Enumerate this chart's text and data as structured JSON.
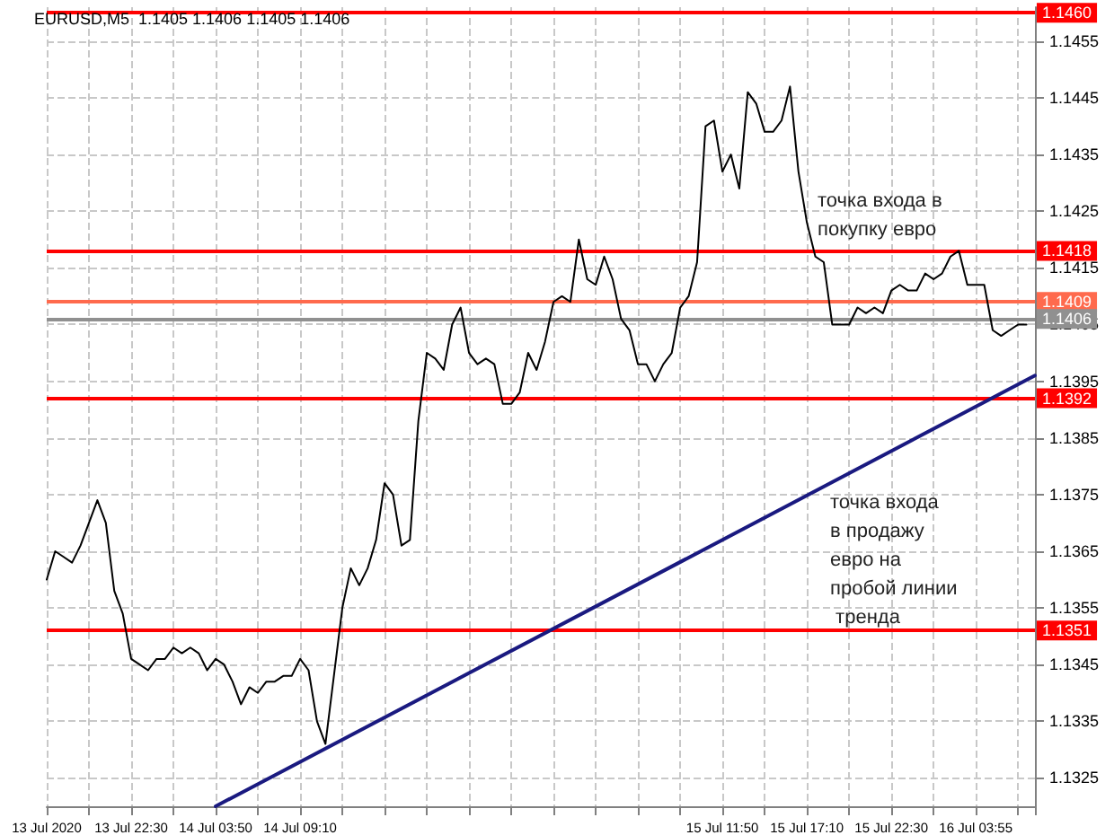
{
  "chart_data": {
    "type": "line",
    "title": "EURUSD,M5  1.1405 1.1406 1.1405 1.1406",
    "annotations": [
      "точка входа в покупку евро",
      "точка входа в продажу евро на пробой линии тренда"
    ],
    "categories": [
      "13 Jul 2020",
      null,
      null,
      null,
      null,
      null,
      null,
      null,
      null,
      null,
      "13 Jul 22:30",
      null,
      null,
      null,
      null,
      null,
      null,
      null,
      null,
      null,
      "14 Jul 03:50",
      null,
      null,
      null,
      null,
      null,
      null,
      null,
      null,
      null,
      "14 Jul 09:10",
      null,
      null,
      null,
      null,
      null,
      null,
      null,
      null,
      null,
      null,
      null,
      null,
      null,
      null,
      null,
      null,
      null,
      null,
      null,
      null,
      null,
      null,
      null,
      null,
      null,
      null,
      null,
      null,
      null,
      null,
      null,
      null,
      null,
      null,
      null,
      null,
      null,
      null,
      null,
      null,
      null,
      null,
      null,
      null,
      null,
      null,
      null,
      null,
      null,
      "15 Jul 11:50",
      null,
      null,
      null,
      null,
      null,
      null,
      null,
      null,
      null,
      "15 Jul 17:10",
      null,
      null,
      null,
      null,
      null,
      null,
      null,
      null,
      null,
      "15 Jul 22:30",
      null,
      null,
      null,
      null,
      null,
      null,
      null,
      null,
      null,
      "16 Jul 03:55",
      null,
      null,
      null,
      null,
      null,
      null,
      null
    ],
    "series": [
      {
        "color": "#000000",
        "values": [
          1.136,
          1.1365,
          1.1364,
          1.1363,
          1.1366,
          1.137,
          1.1374,
          1.137,
          1.1358,
          1.1354,
          1.1346,
          1.1345,
          1.1344,
          1.1346,
          1.1346,
          1.1348,
          1.1347,
          1.1348,
          1.1347,
          1.1344,
          1.1346,
          1.1345,
          1.1342,
          1.1338,
          1.1341,
          1.134,
          1.1342,
          1.1342,
          1.1343,
          1.1343,
          1.1346,
          1.1344,
          1.1335,
          1.1331,
          1.1343,
          1.1355,
          1.1362,
          1.1359,
          1.1362,
          1.1367,
          1.1377,
          1.1375,
          1.1366,
          1.1367,
          1.1388,
          1.14,
          1.1399,
          1.1397,
          1.1405,
          1.1408,
          1.14,
          1.1398,
          1.1399,
          1.1398,
          1.1391,
          1.1391,
          1.1393,
          1.14,
          1.1397,
          1.1402,
          1.1409,
          1.141,
          1.1409,
          1.142,
          1.1413,
          1.1412,
          1.1417,
          1.1413,
          1.1406,
          1.1404,
          1.1398,
          1.1398,
          1.1395,
          1.1398,
          1.14,
          1.1408,
          1.141,
          1.1416,
          1.144,
          1.1441,
          1.1432,
          1.1435,
          1.1429,
          1.1446,
          1.1444,
          1.1439,
          1.1439,
          1.1441,
          1.1447,
          1.1432,
          1.1423,
          1.1417,
          1.1416,
          1.1405,
          1.1405,
          1.1405,
          1.1408,
          1.1407,
          1.1408,
          1.1407,
          1.1411,
          1.1412,
          1.1411,
          1.1411,
          1.1414,
          1.1413,
          1.1414,
          1.1417,
          1.1418,
          1.1412,
          1.1412,
          1.1412,
          1.1404,
          1.1403,
          1.1404,
          1.1405,
          1.1405,
          null
        ]
      },
      {
        "color": "#1a1a80",
        "values": [
          null,
          null,
          null,
          null,
          null,
          null,
          null,
          null,
          null,
          null,
          null,
          null,
          null,
          null,
          null,
          null,
          null,
          null,
          null,
          null,
          1.132,
          null,
          null,
          null,
          null,
          null,
          null,
          null,
          null,
          null,
          null,
          null,
          null,
          null,
          null,
          null,
          null,
          null,
          null,
          null,
          null,
          null,
          null,
          null,
          null,
          null,
          null,
          null,
          null,
          null,
          null,
          null,
          null,
          null,
          null,
          null,
          null,
          null,
          null,
          null,
          null,
          null,
          null,
          null,
          null,
          null,
          null,
          null,
          null,
          null,
          null,
          null,
          null,
          null,
          null,
          null,
          null,
          null,
          null,
          null,
          null,
          null,
          null,
          null,
          null,
          null,
          null,
          null,
          null,
          null,
          null,
          null,
          null,
          null,
          null,
          null,
          null,
          null,
          null,
          null,
          null,
          null,
          null,
          null,
          null,
          null,
          null,
          null,
          null,
          null,
          null,
          null,
          null,
          null,
          null,
          null,
          null,
          1.1396
        ]
      }
    ],
    "ylim": [
      1.132,
      1.1461
    ],
    "yticks": [
      1.1325,
      1.1335,
      1.1345,
      1.1355,
      1.1365,
      1.1375,
      1.1385,
      1.1395,
      1.1405,
      1.1415,
      1.1425,
      1.1435,
      1.1445,
      1.1455
    ],
    "ref_lines": [
      {
        "axis": "y",
        "value": 1.146,
        "label": "1.1460",
        "color": "#ff0000"
      },
      {
        "axis": "y",
        "value": 1.1418,
        "label": "1.1418",
        "color": "#ff0000"
      },
      {
        "axis": "y",
        "value": 1.1409,
        "label": "1.1409",
        "color": "#ff6a4d"
      },
      {
        "axis": "y",
        "value": 1.1406,
        "label": "1.1406",
        "color": "#909090"
      },
      {
        "axis": "y",
        "value": 1.1392,
        "label": "1.1392",
        "color": "#ff0000"
      },
      {
        "axis": "y",
        "value": 1.1351,
        "label": "1.1351",
        "color": "#ff0000"
      }
    ],
    "grid": true,
    "marker": "none",
    "line_style": "solid"
  }
}
